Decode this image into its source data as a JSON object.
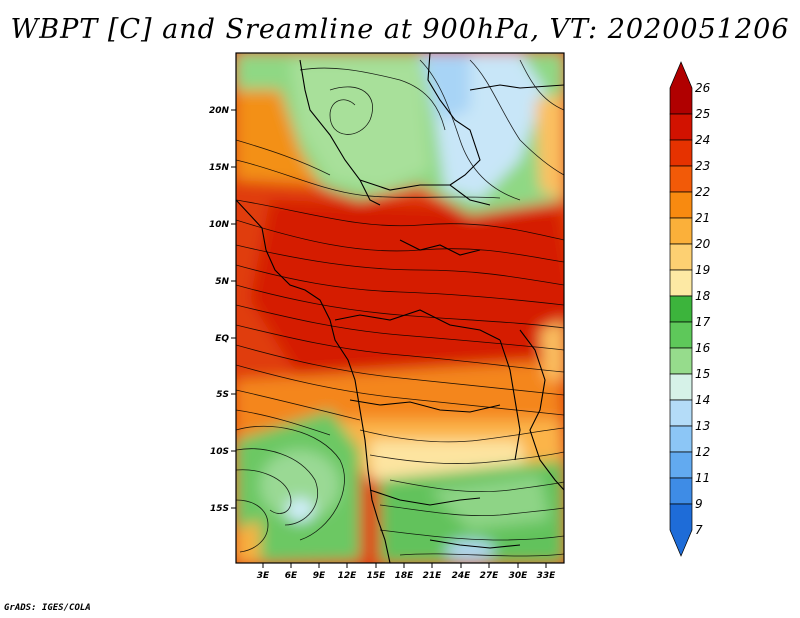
{
  "title": "WBPT [C] and Sreamline at 900hPa, VT: 2020051206",
  "credit": "GrADS: IGES/COLA",
  "lat_labels": [
    "20N",
    "15N",
    "10N",
    "5N",
    "EQ",
    "5S",
    "10S",
    "15S"
  ],
  "lon_labels": [
    "3E",
    "6E",
    "9E",
    "12E",
    "15E",
    "18E",
    "21E",
    "24E",
    "27E",
    "30E",
    "33E"
  ],
  "colorbar": {
    "labels": [
      "26",
      "25",
      "24",
      "23",
      "22",
      "21",
      "20",
      "19",
      "18",
      "17",
      "16",
      "15",
      "14",
      "13",
      "12",
      "11",
      "9",
      "7"
    ],
    "colors": [
      "#b00000",
      "#d21200",
      "#e63200",
      "#f25a08",
      "#f88a10",
      "#fbb03a",
      "#fdd072",
      "#fde9a4",
      "#3cb43c",
      "#5ec85a",
      "#96dc8c",
      "#d6f2e8",
      "#b4dcf8",
      "#8cc6f6",
      "#62aaf0",
      "#3e8ce6",
      "#1e6cd8"
    ]
  }
}
